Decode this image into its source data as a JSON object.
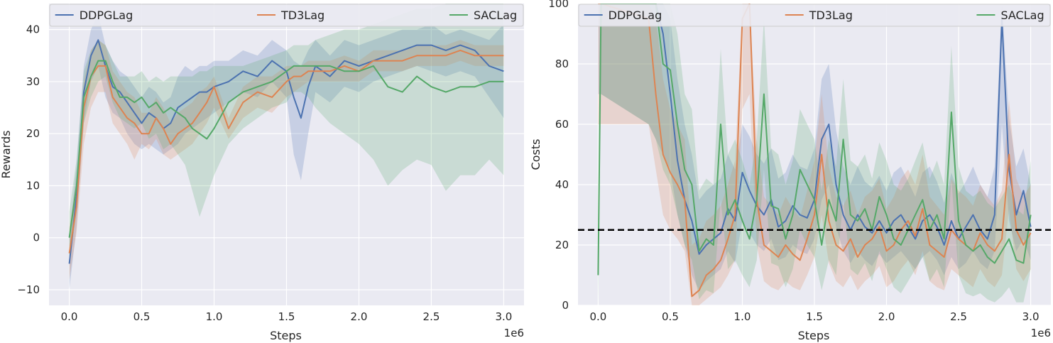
{
  "colors": {
    "DDPGLag": "#4c72b0",
    "TD3Lag": "#dd8452",
    "SACLag": "#55a868",
    "plot_bg": "#eaeaf2",
    "grid": "#ffffff",
    "threshold": "#000000"
  },
  "chart_data": [
    {
      "type": "line",
      "title": "",
      "xlabel": "Steps",
      "ylabel": "Rewards",
      "x_multiplier": "1e6",
      "xlim": [
        -0.14,
        3.14
      ],
      "ylim": [
        -13,
        45
      ],
      "xticks": [
        0.0,
        0.5,
        1.0,
        1.5,
        2.0,
        2.5,
        3.0
      ],
      "xtick_labels": [
        "0.0",
        "0.5",
        "1.0",
        "1.5",
        "2.0",
        "2.5",
        "3.0"
      ],
      "yticks": [
        -10,
        0,
        10,
        20,
        30,
        40
      ],
      "ytick_labels": [
        "−10",
        "0",
        "10",
        "20",
        "30",
        "40"
      ],
      "grid": true,
      "legend": "top, single row",
      "x": [
        0.0,
        0.05,
        0.1,
        0.15,
        0.2,
        0.25,
        0.3,
        0.35,
        0.4,
        0.45,
        0.5,
        0.55,
        0.6,
        0.65,
        0.7,
        0.75,
        0.8,
        0.85,
        0.9,
        0.95,
        1.0,
        1.1,
        1.2,
        1.3,
        1.4,
        1.5,
        1.55,
        1.6,
        1.65,
        1.7,
        1.8,
        1.9,
        2.0,
        2.1,
        2.2,
        2.3,
        2.4,
        2.5,
        2.6,
        2.7,
        2.8,
        2.9,
        3.0
      ],
      "series": [
        {
          "name": "DDPGLag",
          "values": [
            -5,
            8,
            28,
            35,
            38,
            33,
            29,
            28,
            26,
            24,
            22,
            24,
            23,
            21,
            22,
            25,
            26,
            27,
            28,
            28,
            29,
            30,
            32,
            31,
            34,
            32,
            27,
            23,
            29,
            33,
            31,
            34,
            33,
            34,
            35,
            36,
            37,
            37,
            36,
            37,
            36,
            33,
            32
          ],
          "lower": [
            -10,
            2,
            22,
            30,
            33,
            27,
            24,
            23,
            20,
            18,
            17,
            18,
            17,
            16,
            17,
            18,
            20,
            21,
            22,
            23,
            24,
            26,
            28,
            27,
            30,
            27,
            16,
            11,
            20,
            28,
            26,
            29,
            28,
            30,
            31,
            32,
            33,
            32,
            31,
            32,
            31,
            27,
            23
          ],
          "upper": [
            0,
            14,
            33,
            40,
            43,
            37,
            34,
            32,
            31,
            29,
            27,
            29,
            28,
            26,
            27,
            31,
            33,
            32,
            33,
            33,
            34,
            34,
            36,
            35,
            38,
            36,
            34,
            33,
            36,
            38,
            35,
            38,
            37,
            38,
            39,
            40,
            40,
            41,
            39,
            40,
            39,
            38,
            41
          ]
        },
        {
          "name": "TD3Lag",
          "values": [
            -3,
            6,
            25,
            31,
            33,
            33,
            27,
            25,
            23,
            22,
            20,
            20,
            23,
            21,
            18,
            20,
            21,
            22,
            24,
            26,
            29,
            21,
            26,
            28,
            27,
            30,
            31,
            31,
            32,
            32,
            32,
            33,
            32,
            34,
            34,
            34,
            35,
            35,
            35,
            36,
            35,
            35,
            35
          ],
          "lower": [
            -8,
            1,
            18,
            25,
            28,
            28,
            22,
            20,
            18,
            15,
            18,
            17,
            19,
            16,
            15,
            16,
            17,
            18,
            20,
            22,
            25,
            19,
            23,
            25,
            24,
            27,
            28,
            29,
            30,
            30,
            30,
            30,
            30,
            32,
            32,
            32,
            33,
            33,
            33,
            34,
            33,
            33,
            33
          ],
          "upper": [
            2,
            11,
            30,
            36,
            38,
            37,
            32,
            30,
            28,
            27,
            24,
            24,
            27,
            25,
            22,
            24,
            25,
            26,
            28,
            29,
            31,
            23,
            29,
            31,
            31,
            33,
            33,
            33,
            34,
            34,
            34,
            35,
            34,
            36,
            36,
            36,
            37,
            37,
            37,
            38,
            37,
            37,
            37
          ]
        },
        {
          "name": "SACLag",
          "values": [
            0,
            10,
            27,
            31,
            34,
            34,
            30,
            27,
            27,
            26,
            27,
            25,
            26,
            24,
            25,
            24,
            23,
            21,
            20,
            19,
            21,
            26,
            28,
            29,
            30,
            32,
            33,
            33,
            33,
            33,
            33,
            32,
            32,
            33,
            29,
            28,
            31,
            29,
            28,
            29,
            29,
            30,
            30
          ],
          "lower": [
            -5,
            5,
            22,
            27,
            30,
            31,
            26,
            23,
            22,
            21,
            22,
            19,
            20,
            17,
            18,
            16,
            14,
            9,
            4,
            8,
            12,
            18,
            21,
            23,
            25,
            26,
            28,
            28,
            27,
            25,
            22,
            20,
            18,
            15,
            10,
            13,
            15,
            14,
            9,
            12,
            12,
            15,
            12
          ],
          "upper": [
            5,
            15,
            32,
            36,
            38,
            37,
            34,
            31,
            31,
            31,
            32,
            30,
            31,
            30,
            31,
            31,
            31,
            31,
            32,
            32,
            33,
            33,
            33,
            34,
            35,
            36,
            37,
            37,
            37,
            38,
            39,
            40,
            40,
            41,
            42,
            43,
            44,
            44,
            45,
            46,
            46,
            46,
            46
          ]
        }
      ]
    },
    {
      "type": "line",
      "title": "",
      "xlabel": "Steps",
      "ylabel": "Costs",
      "x_multiplier": "1e6",
      "xlim": [
        -0.14,
        3.14
      ],
      "ylim": [
        0,
        100
      ],
      "xticks": [
        0.0,
        0.5,
        1.0,
        1.5,
        2.0,
        2.5,
        3.0
      ],
      "xtick_labels": [
        "0.0",
        "0.5",
        "1.0",
        "1.5",
        "2.0",
        "2.5",
        "3.0"
      ],
      "yticks": [
        0,
        20,
        40,
        60,
        80,
        100
      ],
      "ytick_labels": [
        "0",
        "20",
        "40",
        "60",
        "80",
        "100"
      ],
      "grid": true,
      "legend": "top, single row",
      "threshold": 25,
      "x": [
        0.0,
        0.02,
        0.35,
        0.4,
        0.45,
        0.5,
        0.55,
        0.6,
        0.65,
        0.7,
        0.75,
        0.8,
        0.85,
        0.9,
        0.95,
        1.0,
        1.05,
        1.1,
        1.15,
        1.2,
        1.25,
        1.3,
        1.35,
        1.4,
        1.45,
        1.5,
        1.55,
        1.6,
        1.65,
        1.7,
        1.75,
        1.8,
        1.85,
        1.9,
        1.95,
        2.0,
        2.05,
        2.1,
        2.15,
        2.2,
        2.25,
        2.3,
        2.35,
        2.4,
        2.45,
        2.5,
        2.55,
        2.6,
        2.65,
        2.7,
        2.75,
        2.8,
        2.85,
        2.9,
        2.95,
        3.0
      ],
      "series": [
        {
          "name": "DDPGLag",
          "values": [
            100,
            100,
            100,
            100,
            90,
            70,
            48,
            35,
            28,
            17,
            20,
            22,
            24,
            32,
            28,
            44,
            38,
            33,
            30,
            35,
            26,
            28,
            33,
            30,
            29,
            35,
            55,
            60,
            40,
            30,
            25,
            30,
            26,
            24,
            28,
            24,
            28,
            30,
            26,
            22,
            28,
            30,
            26,
            20,
            28,
            22,
            26,
            30,
            25,
            22,
            30,
            95,
            45,
            30,
            38,
            26
          ],
          "lower": [
            70,
            70,
            60,
            55,
            50,
            45,
            30,
            20,
            10,
            5,
            8,
            10,
            12,
            18,
            14,
            28,
            24,
            20,
            18,
            22,
            15,
            16,
            20,
            18,
            17,
            22,
            35,
            40,
            26,
            18,
            14,
            18,
            15,
            13,
            17,
            14,
            16,
            18,
            15,
            12,
            16,
            18,
            15,
            10,
            16,
            12,
            14,
            18,
            14,
            12,
            18,
            60,
            28,
            18,
            22,
            15
          ],
          "upper": [
            100,
            100,
            100,
            100,
            100,
            95,
            75,
            60,
            50,
            35,
            38,
            40,
            42,
            50,
            45,
            60,
            56,
            50,
            47,
            52,
            42,
            44,
            50,
            46,
            45,
            52,
            75,
            80,
            58,
            46,
            40,
            46,
            41,
            39,
            43,
            38,
            44,
            46,
            41,
            36,
            44,
            46,
            41,
            34,
            44,
            37,
            41,
            46,
            40,
            36,
            46,
            100,
            62,
            46,
            52,
            40
          ]
        },
        {
          "name": "TD3Lag",
          "values": [
            100,
            100,
            95,
            70,
            50,
            44,
            40,
            35,
            3,
            5,
            10,
            12,
            15,
            22,
            30,
            95,
            100,
            35,
            20,
            18,
            16,
            20,
            17,
            15,
            22,
            30,
            50,
            28,
            20,
            18,
            22,
            16,
            20,
            22,
            26,
            18,
            20,
            25,
            28,
            23,
            32,
            20,
            18,
            16,
            25,
            22,
            20,
            18,
            24,
            20,
            18,
            22,
            50,
            25,
            20,
            24
          ],
          "lower": [
            60,
            60,
            60,
            45,
            30,
            25,
            22,
            18,
            0,
            0,
            2,
            4,
            6,
            10,
            15,
            65,
            70,
            20,
            8,
            6,
            5,
            8,
            6,
            5,
            10,
            16,
            30,
            14,
            8,
            6,
            10,
            5,
            8,
            10,
            13,
            6,
            8,
            12,
            15,
            10,
            18,
            8,
            6,
            5,
            12,
            10,
            8,
            6,
            12,
            8,
            6,
            10,
            32,
            12,
            8,
            12
          ],
          "upper": [
            100,
            100,
            100,
            95,
            75,
            65,
            60,
            55,
            20,
            22,
            28,
            30,
            33,
            40,
            48,
            100,
            100,
            55,
            36,
            33,
            30,
            36,
            32,
            29,
            38,
            48,
            70,
            46,
            36,
            33,
            38,
            30,
            36,
            38,
            42,
            32,
            36,
            42,
            45,
            40,
            50,
            36,
            33,
            30,
            42,
            38,
            36,
            33,
            40,
            36,
            33,
            38,
            68,
            42,
            36,
            40
          ]
        },
        {
          "name": "SACLag",
          "values": [
            10,
            100,
            100,
            100,
            80,
            78,
            60,
            45,
            40,
            18,
            22,
            20,
            60,
            30,
            35,
            28,
            22,
            35,
            70,
            33,
            32,
            22,
            30,
            45,
            40,
            35,
            20,
            35,
            28,
            55,
            30,
            28,
            32,
            25,
            36,
            30,
            22,
            20,
            25,
            30,
            35,
            25,
            30,
            22,
            64,
            28,
            20,
            18,
            20,
            16,
            14,
            18,
            22,
            15,
            14,
            30
          ],
          "lower": [
            0,
            70,
            60,
            55,
            45,
            40,
            30,
            20,
            15,
            2,
            5,
            4,
            35,
            12,
            15,
            10,
            6,
            15,
            45,
            14,
            13,
            6,
            12,
            25,
            20,
            16,
            5,
            15,
            10,
            35,
            12,
            10,
            14,
            8,
            18,
            12,
            6,
            4,
            8,
            12,
            16,
            8,
            12,
            6,
            42,
            10,
            4,
            3,
            4,
            2,
            1,
            3,
            6,
            1,
            1,
            12
          ],
          "upper": [
            20,
            100,
            100,
            100,
            100,
            100,
            90,
            70,
            65,
            38,
            42,
            40,
            85,
            50,
            55,
            48,
            40,
            55,
            95,
            52,
            50,
            40,
            48,
            65,
            60,
            55,
            38,
            55,
            46,
            75,
            48,
            46,
            50,
            42,
            54,
            48,
            40,
            38,
            42,
            48,
            54,
            42,
            48,
            40,
            86,
            46,
            38,
            36,
            38,
            34,
            32,
            36,
            40,
            32,
            30,
            48
          ]
        }
      ]
    }
  ]
}
